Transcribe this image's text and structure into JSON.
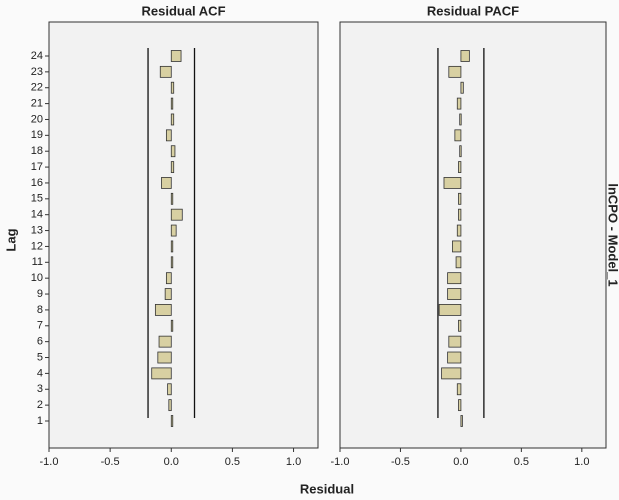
{
  "figure": {
    "xlabel": "Residual",
    "ylabel": "Lag",
    "facet_label": "lnCPO - Model_1"
  },
  "chart_data": [
    {
      "type": "bar",
      "orientation": "horizontal",
      "title": "Residual ACF",
      "categories": [
        1,
        2,
        3,
        4,
        5,
        6,
        7,
        8,
        9,
        10,
        11,
        12,
        13,
        14,
        15,
        16,
        17,
        18,
        19,
        20,
        21,
        22,
        23,
        24
      ],
      "values": [
        0.01,
        -0.02,
        -0.03,
        -0.16,
        -0.11,
        -0.1,
        0.01,
        -0.13,
        -0.05,
        -0.04,
        0.01,
        0.01,
        0.04,
        0.09,
        0.01,
        -0.08,
        0.02,
        0.03,
        -0.04,
        0.02,
        0.01,
        0.02,
        -0.09,
        0.08
      ],
      "color": "#d8d0a2",
      "limits": [
        -0.19,
        0.19
      ],
      "xlim": [
        -1,
        1.2
      ],
      "xticks": [
        {
          "value": -1,
          "label": "-1.0"
        },
        -0.5,
        {
          "value": 0,
          "label": "0.0"
        },
        0.5,
        {
          "value": 1,
          "label": "1.0"
        }
      ]
    },
    {
      "type": "bar",
      "orientation": "horizontal",
      "title": "Residual PACF",
      "categories": [
        1,
        2,
        3,
        4,
        5,
        6,
        7,
        8,
        9,
        10,
        11,
        12,
        13,
        14,
        15,
        16,
        17,
        18,
        19,
        20,
        21,
        22,
        23,
        24
      ],
      "values": [
        0.01,
        -0.02,
        -0.03,
        -0.16,
        -0.11,
        -0.1,
        -0.02,
        -0.18,
        -0.11,
        -0.11,
        -0.04,
        -0.07,
        -0.03,
        -0.02,
        -0.02,
        -0.14,
        -0.02,
        -0.01,
        -0.05,
        -0.01,
        -0.03,
        0.02,
        -0.1,
        0.07
      ],
      "color": "#d8d0a2",
      "limits": [
        -0.19,
        0.19
      ],
      "xlim": [
        -1,
        1.2
      ],
      "xticks": [
        {
          "value": -1,
          "label": "-1.0"
        },
        -0.5,
        {
          "value": 0,
          "label": "0.0"
        },
        0.5,
        {
          "value": 1,
          "label": "1.0"
        }
      ]
    }
  ]
}
